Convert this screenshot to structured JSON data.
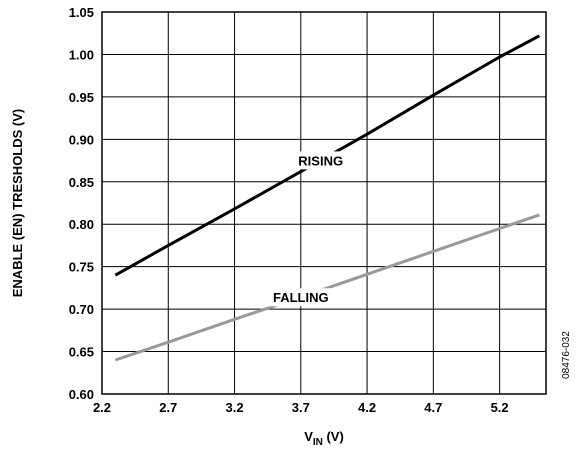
{
  "chart_data": {
    "type": "line",
    "title": "",
    "xlabel": "V",
    "xlabel_sub": "IN",
    "xlabel_suffix": " (V)",
    "ylabel": "ENABLE (EN) TRESHOLDS (V)",
    "xlim": [
      2.2,
      5.55
    ],
    "ylim": [
      0.6,
      1.05
    ],
    "x_ticks": [
      2.2,
      2.7,
      3.2,
      3.7,
      4.2,
      4.7,
      5.2
    ],
    "x_tick_labels": [
      "2.2",
      "2.7",
      "3.2",
      "3.7",
      "4.2",
      "4.7",
      "5.2"
    ],
    "y_ticks": [
      0.6,
      0.65,
      0.7,
      0.75,
      0.8,
      0.85,
      0.9,
      0.95,
      1.0,
      1.05
    ],
    "y_tick_labels": [
      "0.60",
      "0.65",
      "0.70",
      "0.75",
      "0.80",
      "0.85",
      "0.90",
      "0.95",
      "1.00",
      "1.05"
    ],
    "grid": true,
    "series": [
      {
        "name": "RISING",
        "color": "#000000",
        "x": [
          2.3,
          2.7,
          3.2,
          3.7,
          4.2,
          4.7,
          5.2,
          5.5
        ],
        "y": [
          0.74,
          0.775,
          0.818,
          0.862,
          0.906,
          0.952,
          0.997,
          1.022
        ]
      },
      {
        "name": "FALLING",
        "color": "#999999",
        "x": [
          2.3,
          2.7,
          3.2,
          3.7,
          4.2,
          4.7,
          5.2,
          5.5
        ],
        "y": [
          0.64,
          0.661,
          0.688,
          0.714,
          0.741,
          0.768,
          0.795,
          0.811
        ]
      }
    ],
    "annotations": [
      {
        "text": "RISING",
        "series": "RISING",
        "x": 3.85
      },
      {
        "text": "FALLING",
        "series": "FALLING",
        "x": 3.7
      }
    ]
  },
  "figure_id": "08476-032"
}
